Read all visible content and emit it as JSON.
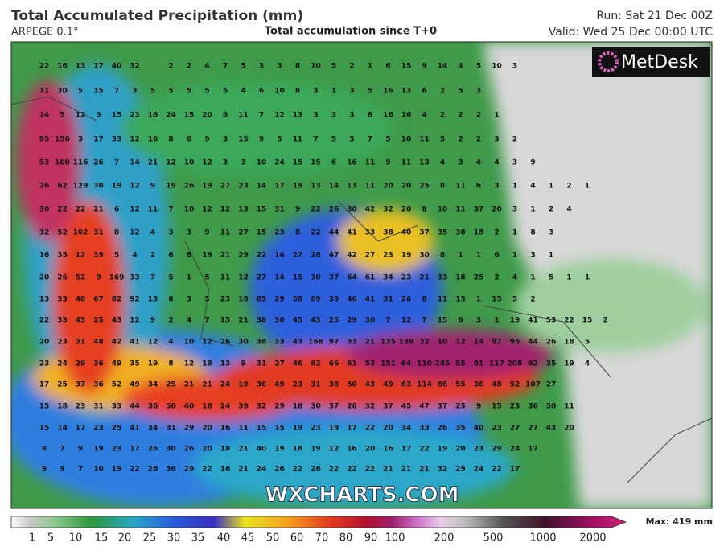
{
  "header": {
    "title": "Total Accumulated Precipitation (mm)",
    "model": "ARPEGE 0.1°",
    "subtitle": "Total accumulation since T+0",
    "run": "Run: Sat 21 Dec 00Z",
    "valid": "Valid: Wed 25 Dec 00:00 UTC"
  },
  "logo": "MetDesk",
  "watermark": "WXCHARTS.COM",
  "legend": {
    "labels": [
      1,
      5,
      10,
      15,
      20,
      25,
      30,
      35,
      40,
      45,
      50,
      60,
      70,
      80,
      90,
      100,
      200,
      500,
      1000,
      2000
    ],
    "max": "Max: 419 mm"
  },
  "map": {
    "rows": [
      [
        22,
        16,
        13,
        17,
        40,
        32,
        null,
        2,
        2,
        4,
        7,
        5,
        3,
        3,
        8,
        10,
        5,
        2,
        1,
        6,
        15,
        9,
        14,
        4,
        5,
        10,
        3
      ],
      [
        31,
        30,
        5,
        15,
        7,
        3,
        5,
        5,
        5,
        5,
        5,
        4,
        6,
        10,
        8,
        3,
        1,
        3,
        5,
        16,
        13,
        6,
        2,
        5,
        3
      ],
      [
        14,
        5,
        12,
        3,
        15,
        23,
        18,
        24,
        15,
        20,
        8,
        11,
        7,
        12,
        13,
        3,
        3,
        3,
        8,
        16,
        16,
        4,
        2,
        2,
        2,
        1
      ],
      [
        95,
        156,
        3,
        17,
        33,
        12,
        16,
        8,
        6,
        9,
        3,
        15,
        9,
        5,
        11,
        7,
        5,
        5,
        7,
        5,
        10,
        11,
        5,
        2,
        2,
        3,
        2
      ],
      [
        53,
        100,
        116,
        26,
        7,
        14,
        21,
        12,
        10,
        12,
        3,
        3,
        10,
        24,
        15,
        15,
        6,
        16,
        11,
        9,
        11,
        13,
        4,
        3,
        4,
        4,
        3,
        9
      ],
      [
        26,
        62,
        129,
        30,
        19,
        12,
        9,
        19,
        26,
        19,
        27,
        23,
        14,
        17,
        19,
        13,
        14,
        13,
        11,
        20,
        20,
        25,
        8,
        11,
        6,
        3,
        1,
        4,
        1,
        2,
        1
      ],
      [
        30,
        22,
        22,
        21,
        6,
        12,
        11,
        7,
        10,
        12,
        12,
        13,
        15,
        31,
        9,
        22,
        26,
        30,
        42,
        32,
        20,
        8,
        10,
        11,
        37,
        20,
        3,
        1,
        2,
        4
      ],
      [
        32,
        52,
        102,
        31,
        8,
        12,
        4,
        3,
        3,
        9,
        11,
        27,
        15,
        23,
        8,
        22,
        44,
        41,
        33,
        38,
        40,
        37,
        35,
        30,
        18,
        2,
        1,
        8,
        3
      ],
      [
        16,
        35,
        12,
        39,
        5,
        4,
        2,
        6,
        8,
        19,
        21,
        29,
        22,
        14,
        27,
        28,
        47,
        42,
        27,
        23,
        19,
        30,
        8,
        1,
        1,
        6,
        1,
        3,
        1
      ],
      [
        20,
        26,
        52,
        9,
        169,
        33,
        7,
        5,
        1,
        5,
        11,
        12,
        27,
        14,
        15,
        30,
        37,
        64,
        61,
        34,
        23,
        21,
        33,
        18,
        25,
        2,
        4,
        1,
        5,
        1,
        1
      ],
      [
        13,
        33,
        48,
        67,
        82,
        92,
        13,
        8,
        3,
        5,
        23,
        18,
        85,
        29,
        58,
        69,
        39,
        46,
        41,
        31,
        26,
        8,
        11,
        15,
        1,
        15,
        5,
        2
      ],
      [
        22,
        33,
        45,
        25,
        43,
        12,
        9,
        2,
        4,
        7,
        15,
        21,
        38,
        30,
        45,
        45,
        25,
        29,
        30,
        7,
        12,
        7,
        15,
        6,
        3,
        1,
        19,
        41,
        53,
        22,
        15,
        2
      ],
      [
        20,
        23,
        31,
        48,
        42,
        41,
        12,
        4,
        10,
        12,
        26,
        30,
        38,
        33,
        43,
        168,
        97,
        33,
        21,
        135,
        138,
        32,
        10,
        12,
        14,
        97,
        95,
        44,
        26,
        18,
        5
      ],
      [
        23,
        24,
        29,
        36,
        49,
        35,
        19,
        8,
        12,
        18,
        13,
        9,
        31,
        27,
        46,
        62,
        66,
        61,
        53,
        151,
        64,
        110,
        245,
        55,
        81,
        117,
        208,
        92,
        35,
        19,
        4
      ],
      [
        17,
        25,
        37,
        36,
        52,
        49,
        34,
        25,
        21,
        21,
        24,
        19,
        36,
        49,
        23,
        31,
        38,
        50,
        43,
        49,
        63,
        114,
        86,
        55,
        36,
        48,
        52,
        107,
        27
      ],
      [
        15,
        18,
        23,
        31,
        33,
        44,
        36,
        50,
        40,
        18,
        24,
        39,
        32,
        29,
        18,
        30,
        37,
        26,
        32,
        37,
        45,
        47,
        37,
        25,
        9,
        15,
        23,
        36,
        50,
        11
      ],
      [
        15,
        14,
        17,
        23,
        25,
        41,
        34,
        31,
        29,
        20,
        16,
        11,
        15,
        15,
        19,
        23,
        19,
        17,
        22,
        20,
        34,
        33,
        26,
        35,
        40,
        23,
        27,
        27,
        43,
        20
      ],
      [
        8,
        7,
        9,
        19,
        23,
        17,
        26,
        30,
        26,
        20,
        18,
        21,
        40,
        19,
        18,
        19,
        12,
        16,
        20,
        16,
        17,
        22,
        19,
        20,
        23,
        29,
        24,
        17
      ],
      [
        9,
        9,
        7,
        10,
        19,
        22,
        26,
        36,
        29,
        22,
        16,
        21,
        24,
        26,
        22,
        26,
        22,
        22,
        22,
        21,
        21,
        21,
        32,
        29,
        24,
        22,
        17
      ]
    ]
  }
}
